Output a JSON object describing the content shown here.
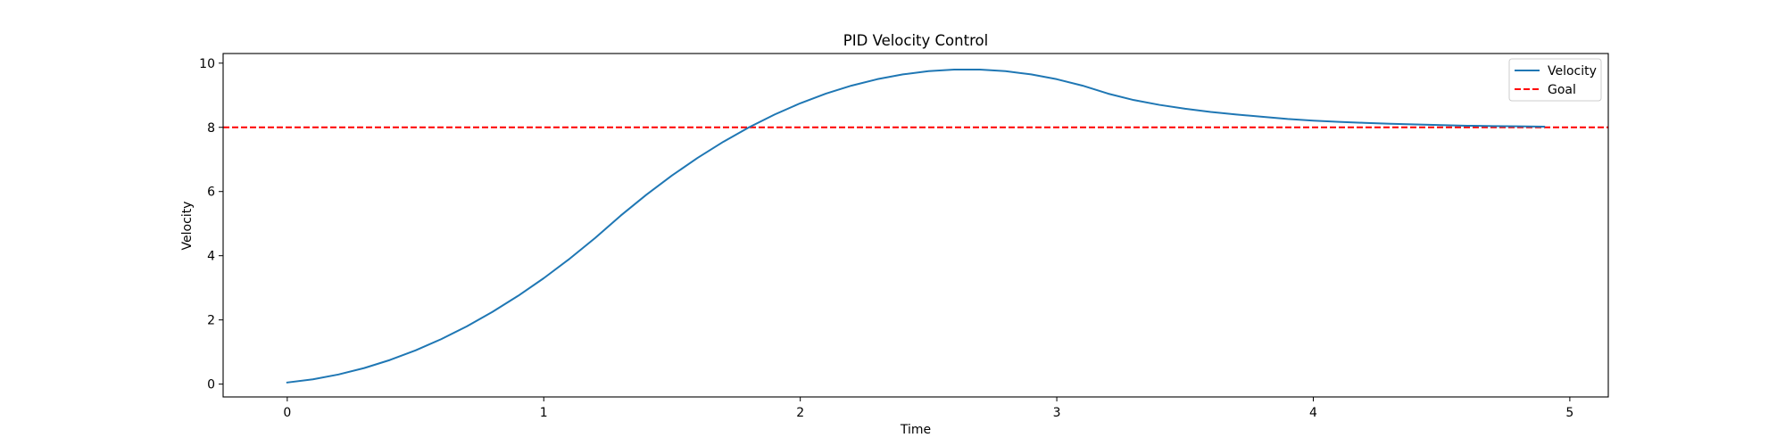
{
  "chart_data": {
    "type": "line",
    "title": "PID Velocity Control",
    "xlabel": "Time",
    "ylabel": "Velocity",
    "xlim": [
      -0.25,
      5.15
    ],
    "ylim": [
      -0.4,
      10.3
    ],
    "xticks": [
      0,
      1,
      2,
      3,
      4,
      5
    ],
    "yticks": [
      0,
      2,
      4,
      6,
      8,
      10
    ],
    "grid": false,
    "legend_position": "top-right",
    "series": [
      {
        "name": "Velocity",
        "color": "#1f77b4",
        "style": "solid",
        "x": [
          0.0,
          0.1,
          0.2,
          0.3,
          0.4,
          0.5,
          0.6,
          0.7,
          0.8,
          0.9,
          1.0,
          1.1,
          1.2,
          1.3,
          1.4,
          1.5,
          1.6,
          1.7,
          1.8,
          1.9,
          2.0,
          2.1,
          2.2,
          2.3,
          2.4,
          2.5,
          2.6,
          2.7,
          2.8,
          2.9,
          3.0,
          3.1,
          3.2,
          3.3,
          3.4,
          3.5,
          3.6,
          3.7,
          3.8,
          3.9,
          4.0,
          4.1,
          4.2,
          4.3,
          4.4,
          4.5,
          4.6,
          4.7,
          4.8,
          4.9
        ],
        "y": [
          0.05,
          0.15,
          0.3,
          0.5,
          0.75,
          1.05,
          1.4,
          1.8,
          2.25,
          2.75,
          3.3,
          3.9,
          4.55,
          5.25,
          5.9,
          6.5,
          7.05,
          7.55,
          8.0,
          8.4,
          8.75,
          9.05,
          9.3,
          9.5,
          9.65,
          9.75,
          9.8,
          9.8,
          9.75,
          9.65,
          9.5,
          9.3,
          9.05,
          8.85,
          8.7,
          8.58,
          8.48,
          8.4,
          8.33,
          8.26,
          8.21,
          8.17,
          8.14,
          8.11,
          8.09,
          8.07,
          8.05,
          8.04,
          8.03,
          8.02
        ]
      },
      {
        "name": "Goal",
        "color": "#ff0000",
        "style": "dashed",
        "y_constant": 8
      }
    ]
  }
}
